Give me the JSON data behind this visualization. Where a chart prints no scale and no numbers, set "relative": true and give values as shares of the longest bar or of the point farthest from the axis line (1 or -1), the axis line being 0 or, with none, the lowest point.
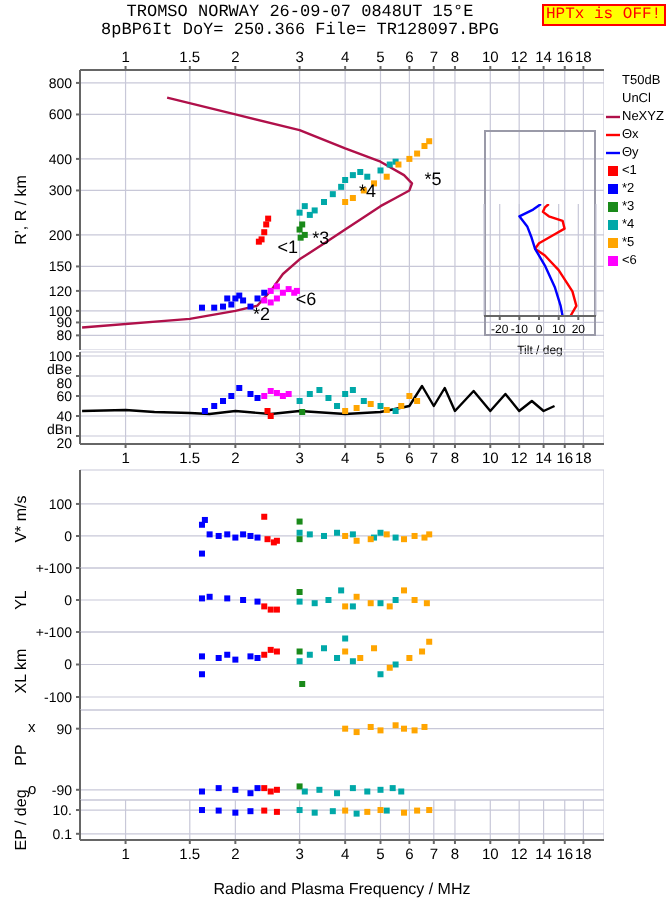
{
  "chart_data": [
    {
      "type": "scatter",
      "title": "TROMSO NORWAY 26-09-07 0848UT 15°E",
      "subtitle": "8pBP6It DoY= 250.366 File= TR128097.BPG",
      "ylabel": "R', R / km",
      "log": "xy",
      "xlim": [
        0.75,
        20.5
      ],
      "xticks": [
        1,
        1.5,
        2,
        3,
        4,
        5,
        6,
        7,
        8,
        10,
        12,
        14,
        16,
        18
      ],
      "ylim": [
        70,
        900
      ],
      "yticks": [
        80,
        90,
        100,
        120,
        150,
        200,
        300,
        400,
        600,
        800
      ],
      "grid": true,
      "legend": "right",
      "marker": "square",
      "annotations": [
        "HPTx is OFF!",
        "T50dB",
        "UnCl",
        {
          "text": "<1",
          "x": 2.45,
          "y": 180
        },
        {
          "text": "*2",
          "x": 2.1,
          "y": 98
        },
        {
          "text": "*3",
          "x": 3.05,
          "y": 195
        },
        {
          "text": "*4",
          "x": 4.1,
          "y": 300
        },
        {
          "text": "*5",
          "x": 6.2,
          "y": 335
        },
        {
          "text": "<6",
          "x": 2.75,
          "y": 112
        }
      ],
      "series": [
        {
          "name": "NeXYZ",
          "type": "line",
          "marker": "none",
          "color": "#b0104a",
          "x": [
            0.76,
            1.5,
            2.0,
            2.3,
            2.5,
            2.7,
            3.0,
            3.5,
            4.0,
            4.5,
            5.0,
            5.5,
            6.0,
            6.1,
            5.8,
            5.0,
            4.0,
            3.0,
            2.0,
            1.3
          ],
          "values": [
            86,
            93,
            100,
            105,
            120,
            140,
            160,
            185,
            210,
            235,
            260,
            280,
            300,
            320,
            345,
            390,
            440,
            520,
            600,
            700
          ]
        },
        {
          "name": "<1",
          "color": "#ff0000",
          "x": [
            2.32,
            2.36,
            2.4,
            2.43,
            2.46
          ],
          "values": [
            188,
            192,
            205,
            220,
            232
          ]
        },
        {
          "name": "*2",
          "color": "#0000ff",
          "x": [
            1.62,
            1.75,
            1.85,
            1.95,
            2.0,
            2.1,
            2.2,
            2.3,
            2.4,
            1.9,
            2.05
          ],
          "values": [
            103,
            103,
            104,
            106,
            112,
            110,
            104,
            112,
            118,
            112,
            115
          ]
        },
        {
          "name": "*3",
          "color": "#1a8a1a",
          "x": [
            3.0,
            3.05,
            3.1,
            3.02
          ],
          "values": [
            210,
            220,
            200,
            195
          ]
        },
        {
          "name": "*4",
          "color": "#00a8a8",
          "x": [
            3.0,
            3.1,
            3.2,
            3.3,
            3.5,
            3.7,
            3.9,
            4.0,
            4.2,
            4.4,
            4.6,
            5.0,
            5.3,
            5.5
          ],
          "values": [
            245,
            260,
            240,
            250,
            270,
            290,
            310,
            330,
            345,
            355,
            340,
            360,
            380,
            390
          ]
        },
        {
          "name": "*5",
          "color": "#ffa500",
          "x": [
            4.0,
            4.2,
            4.5,
            4.8,
            5.2,
            5.6,
            6.0,
            6.3,
            6.6,
            6.8
          ],
          "values": [
            270,
            280,
            300,
            320,
            340,
            380,
            400,
            420,
            450,
            470
          ]
        },
        {
          "name": "<6",
          "color": "#ff00ff",
          "x": [
            2.4,
            2.5,
            2.6,
            2.7,
            2.5,
            2.8,
            2.9,
            2.6,
            2.95
          ],
          "values": [
            110,
            120,
            125,
            118,
            108,
            122,
            118,
            112,
            120
          ]
        }
      ]
    },
    {
      "type": "line",
      "xlabel": "Tilt / deg",
      "relative": true,
      "xlim": [
        -28,
        29
      ],
      "xticks": [
        -20,
        -10,
        0,
        10,
        20
      ],
      "grid": "x",
      "tick_labels": "x",
      "legend": "right",
      "series": [
        {
          "name": "Θx",
          "color": "#ff0000",
          "x": [
            5,
            3,
            2,
            5,
            12,
            13,
            8,
            0,
            -2,
            3,
            10,
            17,
            19,
            16
          ],
          "values": [
            1,
            0.97,
            0.93,
            0.89,
            0.85,
            0.78,
            0.73,
            0.65,
            0.6,
            0.54,
            0.41,
            0.22,
            0.09,
            0
          ]
        },
        {
          "name": "Θy",
          "color": "#0000ff",
          "x": [
            1,
            -3,
            -10,
            -6,
            -4,
            -2,
            3,
            8,
            11,
            12
          ],
          "values": [
            1,
            0.95,
            0.89,
            0.8,
            0.71,
            0.6,
            0.45,
            0.26,
            0.09,
            0
          ]
        }
      ]
    },
    {
      "type": "scatter",
      "log": "x",
      "xlim": [
        0.75,
        20.5
      ],
      "xticks": [
        1,
        1.5,
        2,
        3,
        4,
        5,
        6,
        7,
        8,
        10,
        12,
        14,
        16,
        18
      ],
      "ylim": [
        12,
        104
      ],
      "yticks": [
        {
          "value": 20,
          "label": "dBn 20"
        },
        40,
        60,
        {
          "value": 80,
          "label": "dBe 80"
        },
        100
      ],
      "grid": true,
      "marker": "square",
      "series": [
        {
          "type": "line",
          "marker": "none",
          "color": "#000000",
          "x": [
            0.76,
            1.0,
            1.2,
            1.5,
            1.7,
            2.0,
            2.5,
            3.0,
            4.0,
            5.0,
            6.0,
            6.5,
            7.0,
            7.5,
            8.0,
            9.0,
            10,
            11,
            12,
            13,
            14,
            15
          ],
          "values": [
            45,
            46,
            44,
            43,
            42,
            45,
            42,
            45,
            42,
            44,
            50,
            70,
            50,
            68,
            45,
            65,
            45,
            62,
            45,
            55,
            45,
            50
          ]
        },
        {
          "color": "#0000ff",
          "x": [
            1.65,
            1.75,
            1.85,
            1.95,
            2.05,
            2.2,
            2.3
          ],
          "values": [
            45,
            50,
            55,
            60,
            68,
            62,
            58
          ]
        },
        {
          "color": "#ff00ff",
          "x": [
            2.4,
            2.5,
            2.6,
            2.7,
            2.8
          ],
          "values": [
            60,
            65,
            63,
            60,
            62
          ]
        },
        {
          "color": "#ff0000",
          "x": [
            2.5,
            2.45
          ],
          "values": [
            40,
            45
          ]
        },
        {
          "color": "#1a8a1a",
          "x": [
            3.05
          ],
          "values": [
            44
          ]
        },
        {
          "color": "#00a8a8",
          "x": [
            3.0,
            3.2,
            3.4,
            3.6,
            3.8,
            4.0,
            4.2,
            4.5,
            5.0,
            5.5
          ],
          "values": [
            55,
            62,
            66,
            58,
            50,
            62,
            66,
            55,
            50,
            45
          ]
        },
        {
          "color": "#ffa500",
          "x": [
            4.0,
            4.3,
            4.7,
            5.2,
            5.7,
            6.0,
            6.3
          ],
          "values": [
            45,
            48,
            52,
            46,
            50,
            60,
            55
          ]
        }
      ]
    },
    {
      "type": "scatter",
      "ylabel": "V* m/s",
      "log": "x",
      "xlim": [
        0.75,
        20.5
      ],
      "xticks": [
        1,
        1.5,
        2,
        3,
        4,
        5,
        6,
        7,
        8,
        10,
        12,
        14,
        16,
        18
      ],
      "ylim": [
        -100,
        206
      ],
      "yticks": [
        {
          "value": -100,
          "label": "+-100"
        },
        0,
        100
      ],
      "grid": true,
      "tick_labels": "y",
      "marker": "square",
      "series": [
        {
          "color": "#0000ff",
          "x": [
            1.62,
            1.62,
            1.65,
            1.7,
            1.8,
            1.9,
            2.0,
            2.1,
            2.2,
            2.3
          ],
          "values": [
            35,
            -55,
            50,
            5,
            0,
            5,
            -5,
            5,
            0,
            -5
          ]
        },
        {
          "color": "#ff0000",
          "x": [
            2.4,
            2.45,
            2.55,
            2.6
          ],
          "values": [
            60,
            -10,
            -20,
            -15
          ]
        },
        {
          "color": "#1a8a1a",
          "x": [
            3.0,
            3.0
          ],
          "values": [
            45,
            -10
          ]
        },
        {
          "color": "#00a8a8",
          "x": [
            3.0,
            3.2,
            3.5,
            3.8,
            4.2,
            4.8,
            5.0,
            5.5
          ],
          "values": [
            10,
            5,
            0,
            10,
            5,
            -5,
            10,
            -5
          ]
        },
        {
          "color": "#ffa500",
          "x": [
            4.0,
            4.3,
            4.7,
            5.2,
            5.8,
            6.2,
            6.6,
            6.8
          ],
          "values": [
            0,
            -15,
            -10,
            5,
            -10,
            0,
            -5,
            5
          ]
        }
      ]
    },
    {
      "type": "scatter",
      "ylabel": "YL",
      "log": "x",
      "xlim": [
        0.75,
        20.5
      ],
      "xticks": [
        1,
        1.5,
        2,
        3,
        4,
        5,
        6,
        7,
        8,
        10,
        12,
        14,
        16,
        18
      ],
      "ylim": [
        -100,
        100
      ],
      "yticks": [
        {
          "value": -100,
          "label": "+-100"
        },
        0
      ],
      "grid": true,
      "tick_labels": "y",
      "marker": "square",
      "series": [
        {
          "color": "#0000ff",
          "x": [
            1.62,
            1.7,
            1.9,
            2.1,
            2.3
          ],
          "values": [
            5,
            10,
            5,
            0,
            -5
          ]
        },
        {
          "color": "#ff0000",
          "x": [
            2.4,
            2.5,
            2.6
          ],
          "values": [
            -20,
            -30,
            -30
          ]
        },
        {
          "color": "#1a8a1a",
          "x": [
            3.0
          ],
          "values": [
            25
          ]
        },
        {
          "color": "#00a8a8",
          "x": [
            3.0,
            3.3,
            3.6,
            3.9,
            4.2,
            5.0,
            5.5
          ],
          "values": [
            -5,
            -10,
            0,
            30,
            -20,
            -10,
            0
          ]
        },
        {
          "color": "#ffa500",
          "x": [
            4.0,
            4.3,
            4.7,
            5.3,
            5.8,
            6.2,
            6.7
          ],
          "values": [
            -20,
            10,
            -10,
            -20,
            30,
            0,
            -10
          ]
        }
      ]
    },
    {
      "type": "scatter",
      "ylabel": "XL km",
      "log": "x",
      "xlim": [
        0.75,
        20.5
      ],
      "xticks": [
        1,
        1.5,
        2,
        3,
        4,
        5,
        6,
        7,
        8,
        10,
        12,
        14,
        16,
        18
      ],
      "ylim": [
        -140,
        100
      ],
      "yticks": [
        -100,
        0
      ],
      "grid": true,
      "tick_labels": "y",
      "marker": "square",
      "series": [
        {
          "color": "#0000ff",
          "x": [
            1.62,
            1.62,
            1.8,
            1.9,
            2.0,
            2.2,
            2.3
          ],
          "values": [
            -30,
            25,
            20,
            30,
            15,
            25,
            20
          ]
        },
        {
          "color": "#ff0000",
          "x": [
            2.4,
            2.5,
            2.6
          ],
          "values": [
            30,
            45,
            40
          ]
        },
        {
          "color": "#1a8a1a",
          "x": [
            3.0,
            3.05
          ],
          "values": [
            40,
            -60
          ]
        },
        {
          "color": "#00a8a8",
          "x": [
            3.0,
            3.2,
            3.5,
            3.8,
            4.0,
            4.2,
            5.0,
            5.5
          ],
          "values": [
            10,
            30,
            50,
            20,
            80,
            10,
            -30,
            0
          ]
        },
        {
          "color": "#ffa500",
          "x": [
            4.0,
            4.4,
            4.8,
            5.3,
            6.0,
            6.5,
            6.8
          ],
          "values": [
            40,
            20,
            50,
            -10,
            20,
            40,
            70
          ]
        }
      ]
    },
    {
      "type": "scatter",
      "ylabel": "PP",
      "log": "x",
      "xlim": [
        0.75,
        20.5
      ],
      "xticks": [
        1,
        1.5,
        2,
        3,
        4,
        5,
        6,
        7,
        8,
        10,
        12,
        14,
        16,
        18
      ],
      "ylim": [
        -120,
        145
      ],
      "yticks": [
        -90,
        90
      ],
      "annotations": [
        "o",
        "x"
      ],
      "grid": true,
      "tick_labels": "y",
      "marker": "square",
      "series": [
        {
          "color": "#ffa500",
          "x": [
            4.0,
            4.3,
            4.7,
            5.0,
            5.5,
            5.8,
            6.2,
            6.6
          ],
          "values": [
            90,
            80,
            95,
            85,
            100,
            90,
            85,
            95
          ]
        },
        {
          "color": "#0000ff",
          "x": [
            1.62,
            1.8,
            2.0,
            2.2,
            2.3
          ],
          "values": [
            -95,
            -85,
            -90,
            -100,
            -85
          ]
        },
        {
          "color": "#ff0000",
          "x": [
            2.4,
            2.5,
            2.6
          ],
          "values": [
            -85,
            -95,
            -90
          ]
        },
        {
          "color": "#1a8a1a",
          "x": [
            3.0
          ],
          "values": [
            -80
          ]
        },
        {
          "color": "#00a8a8",
          "x": [
            3.1,
            3.4,
            3.8,
            4.2,
            4.6,
            5.0,
            5.4,
            5.7
          ],
          "values": [
            -95,
            -90,
            -100,
            -85,
            -95,
            -90,
            -85,
            -95
          ]
        }
      ]
    },
    {
      "type": "scatter",
      "ylabel": "EP / deg",
      "xlabel": "Radio and Plasma Frequency / MHz",
      "log": "xy",
      "xlim": [
        0.75,
        20.5
      ],
      "xticks": [
        1,
        1.5,
        2,
        3,
        4,
        5,
        6,
        7,
        8,
        10,
        12,
        14,
        16,
        18
      ],
      "ylim": [
        0.03,
        70
      ],
      "yticks": [
        0.1,
        {
          "value": 10,
          "label": "10."
        }
      ],
      "grid": true,
      "marker": "square",
      "series": [
        {
          "color": "#0000ff",
          "x": [
            1.62,
            1.8,
            2.0,
            2.2
          ],
          "values": [
            10,
            9,
            6,
            8
          ]
        },
        {
          "color": "#ff0000",
          "x": [
            2.4,
            2.6
          ],
          "values": [
            9,
            7
          ]
        },
        {
          "color": "#00a8a8",
          "x": [
            3.0,
            3.3,
            3.7,
            4.3,
            5.2
          ],
          "values": [
            10,
            6,
            8,
            5,
            9
          ]
        },
        {
          "color": "#ffa500",
          "x": [
            4.0,
            4.6,
            5.0,
            5.8,
            6.3,
            6.8
          ],
          "values": [
            9,
            7,
            10,
            6,
            9,
            10
          ]
        }
      ]
    }
  ]
}
